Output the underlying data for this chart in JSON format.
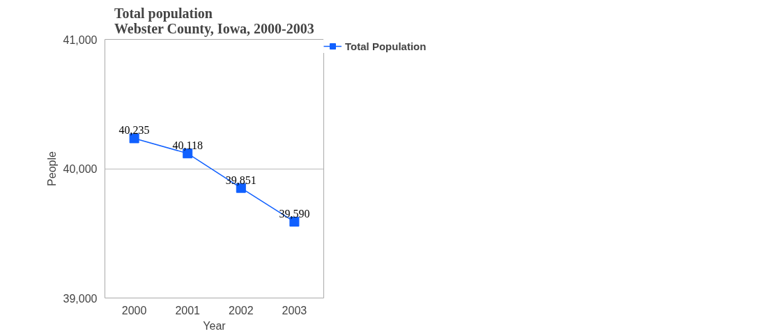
{
  "chart_data": {
    "type": "line",
    "title": "Total population\nWebster County, Iowa, 2000-2003",
    "xlabel": "Year",
    "ylabel": "People",
    "categories": [
      "2000",
      "2001",
      "2002",
      "2003"
    ],
    "series": [
      {
        "name": "Total Population",
        "color": "#1060ff",
        "values": [
          40235,
          40118,
          39851,
          39590
        ],
        "value_labels": [
          "40,235",
          "40,118",
          "39,851",
          "39,590"
        ]
      }
    ],
    "ylim": [
      39000,
      41000
    ],
    "yticks": [
      {
        "value": 39000,
        "label": "39,000"
      },
      {
        "value": 40000,
        "label": "40,000"
      },
      {
        "value": 41000,
        "label": "41,000"
      }
    ],
    "grid": "y",
    "legend": "top right",
    "marker": "square",
    "line_style": "solid"
  }
}
